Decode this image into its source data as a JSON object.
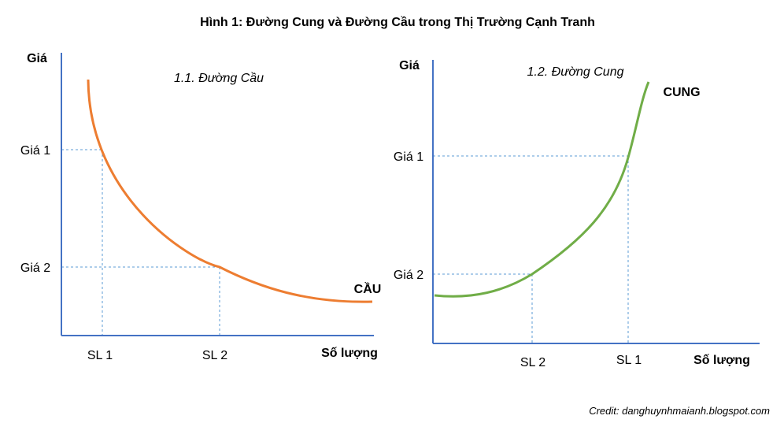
{
  "title": "Hình 1: Đường Cung và Đường Cầu trong Thị Trường Cạnh Tranh",
  "credit": "Credit: danghuynhmaianh.blogspot.com",
  "colors": {
    "axis": "#4472c4",
    "guide": "#5b9bd5",
    "demand": "#ed7d31",
    "supply": "#70ad47"
  },
  "chart_data": [
    {
      "type": "line",
      "subtitle": "1.1. Đường Cầu",
      "xlabel": "Số lượng",
      "ylabel": "Giá",
      "series_label": "CẦU",
      "x_ticks": [
        "SL 1",
        "SL 2"
      ],
      "y_ticks": [
        "Giá 1",
        "Giá 2"
      ],
      "grid": false
    },
    {
      "type": "line",
      "subtitle": "1.2. Đường Cung",
      "xlabel": "Số lượng",
      "ylabel": "Giá",
      "series_label": "CUNG",
      "x_ticks": [
        "SL 2",
        "SL 1"
      ],
      "y_ticks": [
        "Giá 1",
        "Giá 2"
      ],
      "grid": false
    }
  ]
}
